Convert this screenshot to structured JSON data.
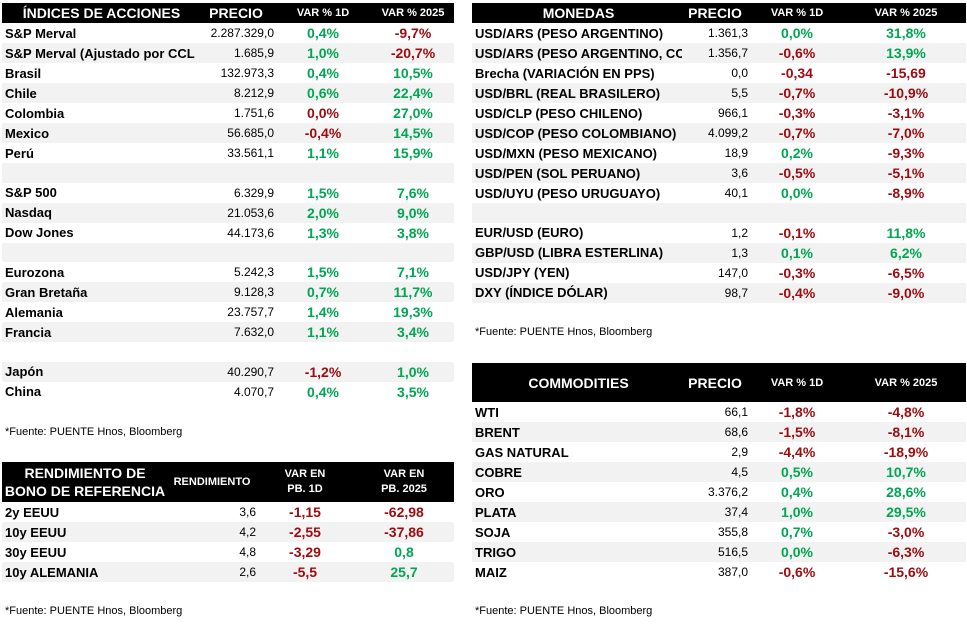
{
  "indices": {
    "headers": [
      "ÍNDICES DE ACCIONES",
      "PRECIO",
      "VAR % 1D",
      "VAR % 2025"
    ],
    "rows": [
      {
        "name": "S&P Merval",
        "price": "2.287.329,0",
        "v1": "0,4%",
        "v1s": "pos",
        "v2": "-9,7%",
        "v2s": "neg"
      },
      {
        "name": "S&P Merval (Ajustado por CCL",
        "price": "1.685,9",
        "v1": "1,0%",
        "v1s": "pos",
        "v2": "-20,7%",
        "v2s": "neg"
      },
      {
        "name": "Brasil",
        "price": "132.973,3",
        "v1": "0,4%",
        "v1s": "pos",
        "v2": "10,5%",
        "v2s": "pos"
      },
      {
        "name": "Chile",
        "price": "8.212,9",
        "v1": "0,6%",
        "v1s": "pos",
        "v2": "22,4%",
        "v2s": "pos"
      },
      {
        "name": "Colombia",
        "price": "1.751,6",
        "v1": "0,0%",
        "v1s": "neg",
        "v2": "27,0%",
        "v2s": "pos"
      },
      {
        "name": "Mexico",
        "price": "56.685,0",
        "v1": "-0,4%",
        "v1s": "neg",
        "v2": "14,5%",
        "v2s": "pos"
      },
      {
        "name": "Perú",
        "price": "33.561,1",
        "v1": "1,1%",
        "v1s": "pos",
        "v2": "15,9%",
        "v2s": "pos"
      },
      {
        "blank": true
      },
      {
        "name": "S&P 500",
        "price": "6.329,9",
        "v1": "1,5%",
        "v1s": "pos",
        "v2": "7,6%",
        "v2s": "pos"
      },
      {
        "name": "Nasdaq",
        "price": "21.053,6",
        "v1": "2,0%",
        "v1s": "pos",
        "v2": "9,0%",
        "v2s": "pos"
      },
      {
        "name": "Dow Jones",
        "price": "44.173,6",
        "v1": "1,3%",
        "v1s": "pos",
        "v2": "3,8%",
        "v2s": "pos"
      },
      {
        "blank": true
      },
      {
        "name": "Eurozona",
        "price": "5.242,3",
        "v1": "1,5%",
        "v1s": "pos",
        "v2": "7,1%",
        "v2s": "pos"
      },
      {
        "name": "Gran Bretaña",
        "price": "9.128,3",
        "v1": "0,7%",
        "v1s": "pos",
        "v2": "11,7%",
        "v2s": "pos"
      },
      {
        "name": "Alemania",
        "price": "23.757,7",
        "v1": "1,4%",
        "v1s": "pos",
        "v2": "19,3%",
        "v2s": "pos"
      },
      {
        "name": "Francia",
        "price": "7.632,0",
        "v1": "1,1%",
        "v1s": "pos",
        "v2": "3,4%",
        "v2s": "pos"
      },
      {
        "blank": true
      },
      {
        "name": "Japón",
        "price": "40.290,7",
        "v1": "-1,2%",
        "v1s": "neg",
        "v2": "1,0%",
        "v2s": "pos"
      },
      {
        "name": "China",
        "price": "4.070,7",
        "v1": "0,4%",
        "v1s": "pos",
        "v2": "3,5%",
        "v2s": "pos"
      }
    ],
    "source": "*Fuente: PUENTE Hnos, Bloomberg"
  },
  "monedas": {
    "headers": [
      "MONEDAS",
      "PRECIO",
      "VAR % 1D",
      "VAR % 2025"
    ],
    "rows": [
      {
        "name": "USD/ARS (PESO ARGENTINO)",
        "price": "1.361,3",
        "v1": "0,0%",
        "v1s": "pos",
        "v2": "31,8%",
        "v2s": "pos"
      },
      {
        "name": "USD/ARS (PESO ARGENTINO, CCL)",
        "price": "1.356,7",
        "v1": "-0,6%",
        "v1s": "neg",
        "v2": "13,9%",
        "v2s": "pos"
      },
      {
        "name": "Brecha (VARIACIÓN EN PPS)",
        "price": "0,0",
        "v1": "-0,34",
        "v1s": "neg",
        "v2": "-15,69",
        "v2s": "neg"
      },
      {
        "name": "USD/BRL (REAL BRASILERO)",
        "price": "5,5",
        "v1": "-0,7%",
        "v1s": "neg",
        "v2": "-10,9%",
        "v2s": "neg"
      },
      {
        "name": "USD/CLP (PESO CHILENO)",
        "price": "966,1",
        "v1": "-0,3%",
        "v1s": "neg",
        "v2": "-3,1%",
        "v2s": "neg"
      },
      {
        "name": "USD/COP (PESO COLOMBIANO)",
        "price": "4.099,2",
        "v1": "-0,7%",
        "v1s": "neg",
        "v2": "-7,0%",
        "v2s": "neg"
      },
      {
        "name": "USD/MXN (PESO MEXICANO)",
        "price": "18,9",
        "v1": "0,2%",
        "v1s": "pos",
        "v2": "-9,3%",
        "v2s": "neg"
      },
      {
        "name": "USD/PEN (SOL PERUANO)",
        "price": "3,6",
        "v1": "-0,5%",
        "v1s": "neg",
        "v2": "-5,1%",
        "v2s": "neg"
      },
      {
        "name": "USD/UYU (PESO URUGUAYO)",
        "price": "40,1",
        "v1": "0,0%",
        "v1s": "pos",
        "v2": "-8,9%",
        "v2s": "neg"
      },
      {
        "blank": true
      },
      {
        "name": "EUR/USD (EURO)",
        "price": "1,2",
        "v1": "-0,1%",
        "v1s": "neg",
        "v2": "11,8%",
        "v2s": "pos"
      },
      {
        "name": "GBP/USD (LIBRA ESTERLINA)",
        "price": "1,3",
        "v1": "0,1%",
        "v1s": "pos",
        "v2": "6,2%",
        "v2s": "pos"
      },
      {
        "name": "USD/JPY (YEN)",
        "price": "147,0",
        "v1": "-0,3%",
        "v1s": "neg",
        "v2": "-6,5%",
        "v2s": "neg"
      },
      {
        "name": "DXY (ÍNDICE DÓLAR)",
        "price": "98,7",
        "v1": "-0,4%",
        "v1s": "neg",
        "v2": "-9,0%",
        "v2s": "neg"
      }
    ],
    "source": "*Fuente: PUENTE Hnos, Bloomberg"
  },
  "commodities": {
    "headers": [
      "COMMODITIES",
      "PRECIO",
      "VAR % 1D",
      "VAR % 2025"
    ],
    "rows": [
      {
        "name": "WTI",
        "price": "66,1",
        "v1": "-1,8%",
        "v1s": "neg",
        "v2": "-4,8%",
        "v2s": "neg"
      },
      {
        "name": "BRENT",
        "price": "68,6",
        "v1": "-1,5%",
        "v1s": "neg",
        "v2": "-8,1%",
        "v2s": "neg"
      },
      {
        "name": "GAS NATURAL",
        "price": "2,9",
        "v1": "-4,4%",
        "v1s": "neg",
        "v2": "-18,9%",
        "v2s": "neg"
      },
      {
        "name": "COBRE",
        "price": "4,5",
        "v1": "0,5%",
        "v1s": "pos",
        "v2": "10,7%",
        "v2s": "pos"
      },
      {
        "name": "ORO",
        "price": "3.376,2",
        "v1": "0,4%",
        "v1s": "pos",
        "v2": "28,6%",
        "v2s": "pos"
      },
      {
        "name": "PLATA",
        "price": "37,4",
        "v1": "1,0%",
        "v1s": "pos",
        "v2": "29,5%",
        "v2s": "pos"
      },
      {
        "name": "SOJA",
        "price": "355,8",
        "v1": "0,7%",
        "v1s": "pos",
        "v2": "-3,0%",
        "v2s": "neg"
      },
      {
        "name": "TRIGO",
        "price": "516,5",
        "v1": "0,0%",
        "v1s": "pos",
        "v2": "-6,3%",
        "v2s": "neg"
      },
      {
        "name": "MAIZ",
        "price": "387,0",
        "v1": "-0,6%",
        "v1s": "neg",
        "v2": "-15,6%",
        "v2s": "neg"
      }
    ],
    "source": "*Fuente: PUENTE Hnos, Bloomberg"
  },
  "bonos": {
    "title_line1": "RENDIMIENTO DE",
    "title_line2": "BONO DE REFERENCIA",
    "h_rend": "RENDIMIENTO",
    "h_v1_line1": "VAR EN",
    "h_v1_line2": "PB. 1D",
    "h_v2_line1": "VAR EN",
    "h_v2_line2": "PB. 2025",
    "rows": [
      {
        "name": "2y EEUU",
        "price": "3,6",
        "v1": "-1,15",
        "v1s": "neg",
        "v2": "-62,98",
        "v2s": "neg"
      },
      {
        "name": "10y EEUU",
        "price": "4,2",
        "v1": "-2,55",
        "v1s": "neg",
        "v2": "-37,86",
        "v2s": "neg"
      },
      {
        "name": "30y EEUU",
        "price": "4,8",
        "v1": "-3,29",
        "v1s": "neg",
        "v2": "0,8",
        "v2s": "pos"
      },
      {
        "name": "10y ALEMANIA",
        "price": "2,6",
        "v1": "-5,5",
        "v1s": "neg",
        "v2": "25,7",
        "v2s": "pos"
      }
    ],
    "source": "*Fuente: PUENTE Hnos, Bloomberg"
  },
  "colors": {
    "positive": "#00a651",
    "negative": "#9e0b0f",
    "header_bg": "#000000",
    "alt_row": "#f2f2f2"
  }
}
